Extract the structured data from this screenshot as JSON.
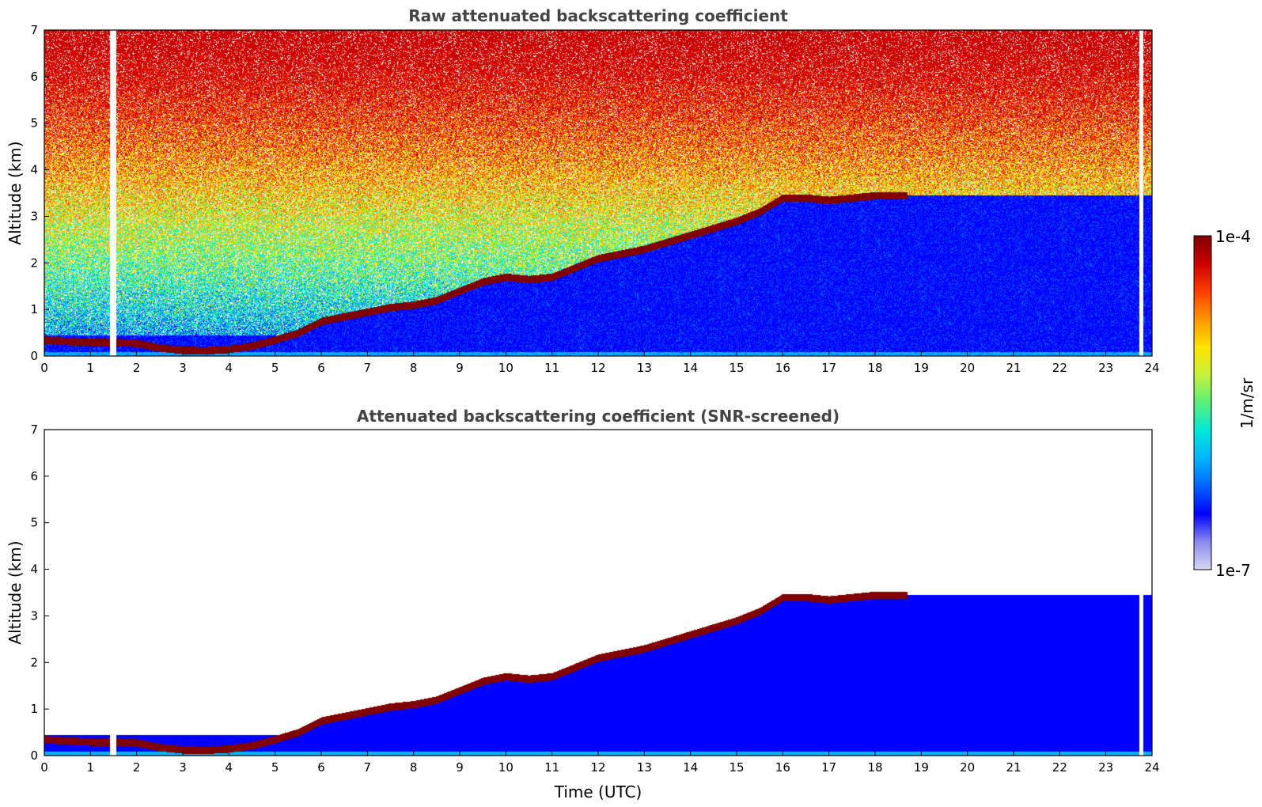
{
  "colormap": [
    "#ffffff",
    "#d8d8f2",
    "#8a8aee",
    "#0000ff",
    "#0064ff",
    "#00b4ff",
    "#00e8d8",
    "#5af07a",
    "#c8f03c",
    "#ffe400",
    "#ff9600",
    "#ff3c00",
    "#cc0000",
    "#800000"
  ],
  "chart_data": [
    {
      "type": "heatmap",
      "title": "Raw attenuated backscattering coefficient",
      "xlabel": "",
      "ylabel": "Altitude (km)",
      "xlim": [
        0,
        24
      ],
      "ylim": [
        0,
        7
      ],
      "xticks": [
        "0",
        "1",
        "2",
        "3",
        "4",
        "5",
        "6",
        "7",
        "8",
        "9",
        "10",
        "11",
        "12",
        "13",
        "14",
        "15",
        "16",
        "17",
        "18",
        "19",
        "20",
        "21",
        "22",
        "23",
        "24"
      ],
      "yticks": [
        "0",
        "1",
        "2",
        "3",
        "4",
        "5",
        "6",
        "7"
      ],
      "data_gaps_utc": [
        [
          1.42,
          1.55
        ],
        [
          23.72,
          23.8
        ]
      ],
      "cloud_layer": {
        "time_utc": [
          0.0,
          0.5,
          1.0,
          1.5,
          2.0,
          2.5,
          3.0,
          3.5,
          4.0,
          4.5,
          5.0,
          5.5,
          6.0,
          6.5,
          7.0,
          7.5,
          8.0,
          8.5,
          9.0,
          9.5,
          10.0,
          10.5,
          11.0,
          11.5,
          12.0,
          12.5,
          13.0,
          13.5,
          14.0,
          14.5,
          15.0,
          15.5,
          16.0,
          16.5,
          17.0,
          17.5,
          18.0,
          18.5
        ],
        "altitude_km": [
          0.35,
          0.32,
          0.3,
          0.3,
          0.28,
          0.18,
          0.13,
          0.12,
          0.15,
          0.22,
          0.35,
          0.5,
          0.75,
          0.85,
          0.95,
          1.05,
          1.1,
          1.2,
          1.4,
          1.6,
          1.7,
          1.65,
          1.7,
          1.9,
          2.1,
          2.2,
          2.3,
          2.45,
          2.6,
          2.75,
          2.9,
          3.1,
          3.4,
          3.4,
          3.35,
          3.4,
          3.45,
          3.45
        ]
      },
      "colorbar": {
        "max_label": "1e-4",
        "min_label": "1e-7",
        "unit": "1/m/sr"
      }
    },
    {
      "type": "heatmap",
      "title": "Attenuated backscattering coefficient (SNR-screened)",
      "xlabel": "Time (UTC)",
      "ylabel": "Altitude (km)",
      "xlim": [
        0,
        24
      ],
      "ylim": [
        0,
        7
      ],
      "xticks": [
        "0",
        "1",
        "2",
        "3",
        "4",
        "5",
        "6",
        "7",
        "8",
        "9",
        "10",
        "11",
        "12",
        "13",
        "14",
        "15",
        "16",
        "17",
        "18",
        "19",
        "20",
        "21",
        "22",
        "23",
        "24"
      ],
      "yticks": [
        "0",
        "1",
        "2",
        "3",
        "4",
        "5",
        "6",
        "7"
      ],
      "colorbar": {
        "max_label": "1e-4",
        "min_label": "1e-7",
        "unit": "1/m/sr"
      }
    }
  ]
}
